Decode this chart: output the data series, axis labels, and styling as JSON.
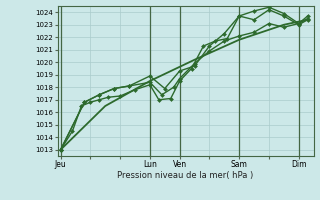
{
  "background_color": "#cce8e8",
  "grid_color": "#aacccc",
  "line_color": "#2d6a2d",
  "marker_color": "#2d6a2d",
  "xlabel": "Pression niveau de la mer( hPa )",
  "ylim": [
    1012.5,
    1024.5
  ],
  "yticks": [
    1013,
    1014,
    1015,
    1016,
    1017,
    1018,
    1019,
    1020,
    1021,
    1022,
    1023,
    1024
  ],
  "xtick_labels": [
    "Jeu",
    "",
    "",
    "Lun",
    "Ven",
    "",
    "Sam",
    "",
    "Dim"
  ],
  "xtick_positions": [
    0,
    1,
    2,
    3,
    4,
    5,
    6,
    7,
    8
  ],
  "vline_positions": [
    0,
    3,
    4,
    6,
    8
  ],
  "xlim": [
    -0.1,
    8.5
  ],
  "lines": [
    {
      "x": [
        0.0,
        0.4,
        0.7,
        1.0,
        1.3,
        1.6,
        2.0,
        2.5,
        3.0,
        3.3,
        3.7,
        4.0,
        4.4,
        4.8,
        5.2,
        5.6,
        6.0,
        6.5,
        7.0,
        7.5,
        8.0,
        8.3
      ],
      "y": [
        1013.0,
        1014.5,
        1016.5,
        1016.8,
        1017.0,
        1017.2,
        1017.3,
        1017.8,
        1018.2,
        1017.0,
        1017.1,
        1018.5,
        1019.5,
        1021.3,
        1021.7,
        1021.9,
        1023.7,
        1023.4,
        1024.2,
        1023.7,
        1023.0,
        1023.4
      ],
      "marker": "D",
      "markersize": 2.0,
      "linewidth": 1.0
    },
    {
      "x": [
        0.0,
        0.8,
        1.3,
        1.8,
        2.3,
        3.0,
        3.4,
        3.8,
        4.0,
        4.5,
        5.0,
        5.5,
        6.0,
        6.5,
        7.0,
        7.5,
        8.0,
        8.3
      ],
      "y": [
        1013.0,
        1016.8,
        1017.4,
        1017.9,
        1018.1,
        1018.4,
        1017.4,
        1018.0,
        1018.7,
        1019.9,
        1020.9,
        1021.7,
        1022.1,
        1022.4,
        1023.1,
        1022.8,
        1023.1,
        1023.5
      ],
      "marker": "D",
      "markersize": 2.0,
      "linewidth": 1.0
    },
    {
      "x": [
        0.0,
        0.8,
        1.3,
        1.8,
        2.3,
        3.0,
        3.5,
        4.0,
        4.5,
        5.0,
        5.5,
        6.0,
        6.5,
        7.0,
        7.5,
        8.0,
        8.3
      ],
      "y": [
        1013.0,
        1016.8,
        1017.4,
        1017.9,
        1018.1,
        1018.9,
        1017.9,
        1019.3,
        1019.7,
        1021.3,
        1022.3,
        1023.7,
        1024.1,
        1024.4,
        1023.9,
        1023.1,
        1023.7
      ],
      "marker": "D",
      "markersize": 2.0,
      "linewidth": 1.0
    },
    {
      "x": [
        0.0,
        1.5,
        3.0,
        4.5,
        6.0,
        7.5,
        8.3
      ],
      "y": [
        1013.0,
        1016.5,
        1018.5,
        1020.2,
        1021.8,
        1023.0,
        1023.4
      ],
      "marker": null,
      "markersize": 0,
      "linewidth": 1.3
    }
  ]
}
